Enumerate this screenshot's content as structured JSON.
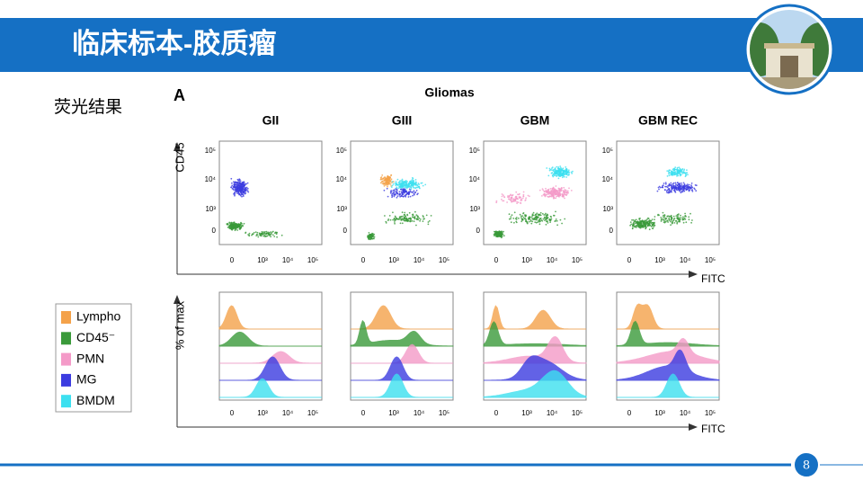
{
  "header": {
    "title": "临床标本-胶质瘤"
  },
  "section_label": "荧光结果",
  "figure": {
    "panel_label": "A",
    "title": "Gliomas",
    "columns": [
      "GII",
      "GIII",
      "GBM",
      "GBM REC"
    ],
    "scatter_y_axis": "CD45",
    "scatter_x_axis": "FITC",
    "hist_y_axis": "% of max",
    "hist_x_axis": "FITC",
    "x_tick_labels": [
      "0",
      "10³",
      "10⁴",
      "10⁵"
    ],
    "y_tick_labels": [
      "0",
      "10³",
      "10⁴",
      "10⁵"
    ],
    "legend": [
      "Lympho",
      "CD45⁻",
      "PMN",
      "MG",
      "BMDM"
    ]
  },
  "page_number": "8"
}
